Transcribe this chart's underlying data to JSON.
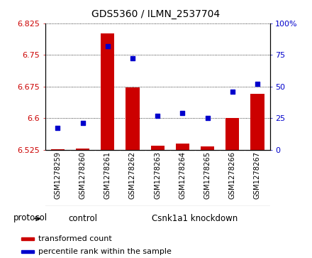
{
  "title": "GDS5360 / ILMN_2537704",
  "samples": [
    "GSM1278259",
    "GSM1278260",
    "GSM1278261",
    "GSM1278262",
    "GSM1278263",
    "GSM1278264",
    "GSM1278265",
    "GSM1278266",
    "GSM1278267"
  ],
  "transformed_counts": [
    6.526,
    6.528,
    6.8,
    6.672,
    6.535,
    6.54,
    6.533,
    6.6,
    6.658
  ],
  "percentile_ranks": [
    17,
    21,
    82,
    72,
    27,
    29,
    25,
    46,
    52
  ],
  "ylim_left": [
    6.525,
    6.825
  ],
  "ylim_right": [
    0,
    100
  ],
  "yticks_left": [
    6.525,
    6.6,
    6.675,
    6.75,
    6.825
  ],
  "yticks_right": [
    0,
    25,
    50,
    75,
    100
  ],
  "ytick_labels_left": [
    "6.525",
    "6.6",
    "6.675",
    "6.75",
    "6.825"
  ],
  "ytick_labels_right": [
    "0",
    "25",
    "50",
    "75",
    "100%"
  ],
  "bar_color": "#cc0000",
  "dot_color": "#0000cc",
  "bar_width": 0.55,
  "n_control": 3,
  "control_label": "control",
  "knockdown_label": "Csnk1a1 knockdown",
  "protocol_label": "protocol",
  "legend_bar_label": "transformed count",
  "legend_dot_label": "percentile rank within the sample",
  "background_color": "#ffffff",
  "plot_bg_color": "#ffffff",
  "tick_label_color_left": "#cc0000",
  "tick_label_color_right": "#0000cc",
  "grid_color": "#000000",
  "xlabel_area_color": "#d0d0d0",
  "protocol_box_color": "#88ee88",
  "title_fontsize": 10,
  "tick_fontsize": 8,
  "label_fontsize": 8
}
